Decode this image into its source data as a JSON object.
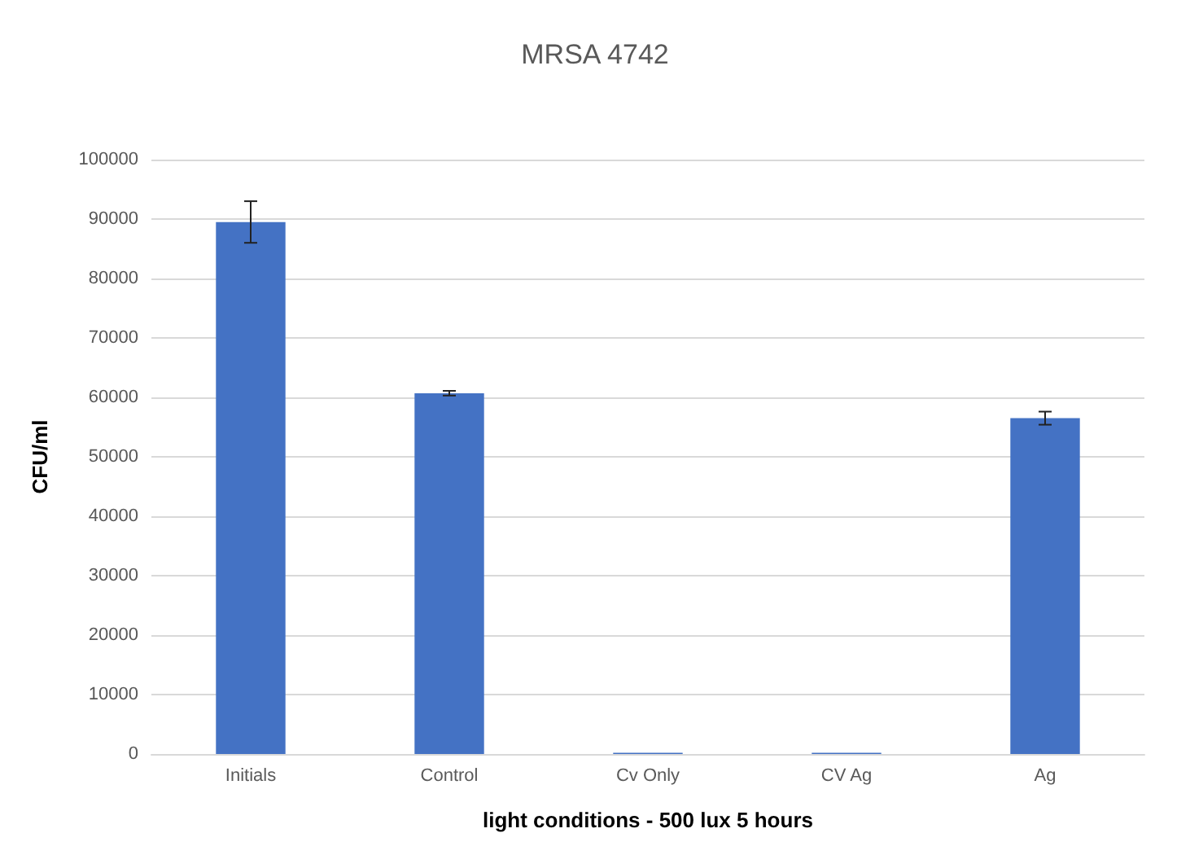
{
  "chart_data": {
    "type": "bar",
    "title": "MRSA 4742",
    "xlabel": "light conditions - 500 lux 5 hours",
    "ylabel": "CFU/ml",
    "categories": [
      "Initials",
      "Control",
      "Cv Only",
      "CV Ag",
      "Ag"
    ],
    "values": [
      89500,
      60700,
      200,
      200,
      56500
    ],
    "errors": [
      3500,
      400,
      null,
      null,
      1100
    ],
    "color": "#4472c4",
    "ylim": [
      0,
      100000
    ],
    "yticks": [
      0,
      10000,
      20000,
      30000,
      40000,
      50000,
      60000,
      70000,
      80000,
      90000,
      100000
    ],
    "grid": "y"
  }
}
